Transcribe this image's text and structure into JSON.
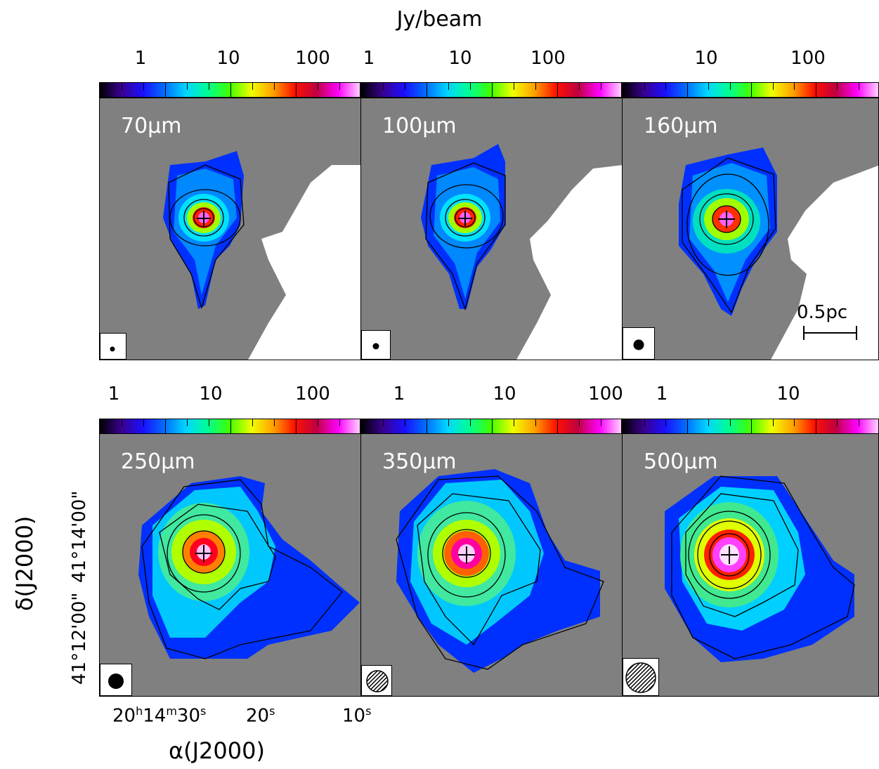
{
  "colorbar_title": "Jy/beam",
  "colormap": [
    "#000000",
    "#3a0090",
    "#1a10ff",
    "#0070ff",
    "#00d8ff",
    "#00ff90",
    "#40ff00",
    "#f0ff00",
    "#ffa000",
    "#ff1000",
    "#c00040",
    "#ff00ff",
    "#ffd0ff"
  ],
  "background_color": "#808080",
  "panels": [
    {
      "id": "70um",
      "label": "70µm",
      "ticks": [
        "1",
        "10",
        "100"
      ],
      "beam": "filled",
      "size": "small"
    },
    {
      "id": "100um",
      "label": "100µm",
      "ticks": [
        "1",
        "10",
        "100"
      ],
      "beam": "filled",
      "size": "small"
    },
    {
      "id": "160um",
      "label": "160µm",
      "ticks": [
        "10",
        "100"
      ],
      "beam": "filled",
      "size": "medium"
    },
    {
      "id": "250um",
      "label": "250µm",
      "ticks": [
        "1",
        "10",
        "100"
      ],
      "beam": "filled",
      "size": "medium"
    },
    {
      "id": "350um",
      "label": "350µm",
      "ticks": [
        "1",
        "10",
        "100"
      ],
      "beam": "hatched",
      "size": "large"
    },
    {
      "id": "500um",
      "label": "500µm",
      "ticks": [
        "1",
        "10"
      ],
      "beam": "hatched",
      "size": "xlarge"
    }
  ],
  "scale_bar": "0.5pc",
  "ra_ticks": {
    "t1_h": "20",
    "t1_m": "14",
    "t1_s": "30",
    "t2_s": "20",
    "t3_s": "10"
  },
  "dec_ticks": [
    "41°12'00\"",
    "41°14'00\""
  ],
  "axes": {
    "x_title": "α(J2000)",
    "y_title": "δ(J2000)"
  }
}
